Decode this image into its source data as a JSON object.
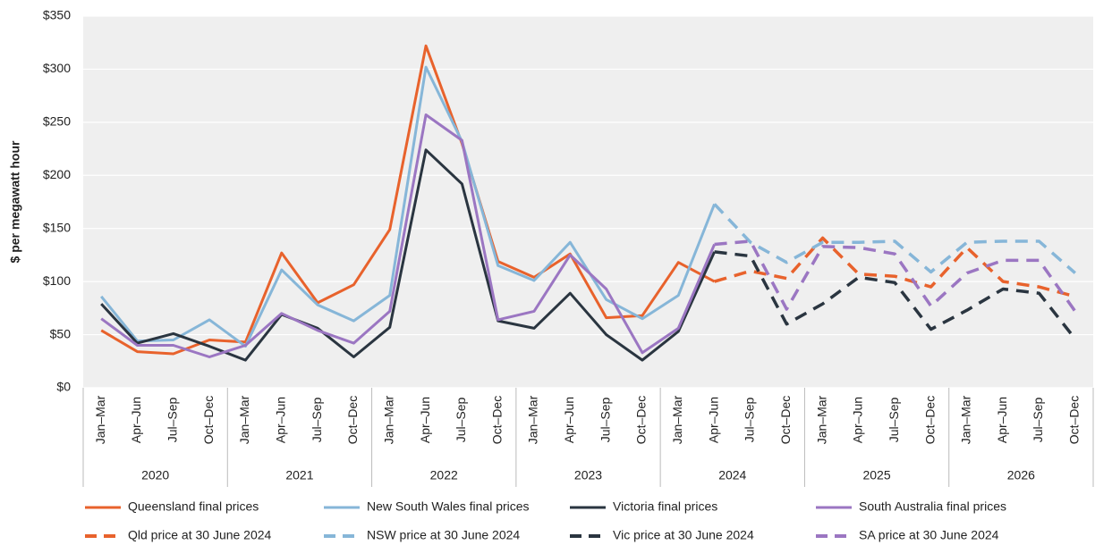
{
  "chart_data": {
    "type": "line",
    "y_label": "$ per megawatt hour",
    "categories": [
      "Jan–Mar",
      "Apr–Jun",
      "Jul–Sep",
      "Oct–Dec",
      "Jan–Mar",
      "Apr–Jun",
      "Jul–Sep",
      "Oct–Dec",
      "Jan–Mar",
      "Apr–Jun",
      "Jul–Sep",
      "Oct–Dec",
      "Jan–Mar",
      "Apr–Jun",
      "Jul–Sep",
      "Oct–Dec",
      "Jan–Mar",
      "Apr–Jun",
      "Jul–Sep",
      "Oct–Dec",
      "Jan–Mar",
      "Apr–Jun",
      "Jul–Sep",
      "Oct–Dec",
      "Jan–Mar",
      "Apr–Jun",
      "Jul–Sep",
      "Oct–Dec"
    ],
    "years": [
      "2020",
      "2021",
      "2022",
      "2023",
      "2024",
      "2025",
      "2026"
    ],
    "ylim": [
      0,
      350
    ],
    "yticks": [
      {
        "value": 0,
        "label": "$0"
      },
      {
        "value": 50,
        "label": "$50"
      },
      {
        "value": 100,
        "label": "$100"
      },
      {
        "value": 150,
        "label": "$150"
      },
      {
        "value": 200,
        "label": "$200"
      },
      {
        "value": 250,
        "label": "$250"
      },
      {
        "value": 300,
        "label": "$300"
      },
      {
        "value": 350,
        "label": "$350"
      }
    ],
    "grid": true,
    "series": [
      {
        "name": "Queensland final prices",
        "color": "#e8622c",
        "style": "solid",
        "values": [
          54,
          34,
          32,
          45,
          43,
          127,
          80,
          97,
          149,
          322,
          230,
          119,
          104,
          126,
          66,
          68,
          118,
          100,
          null,
          null,
          null,
          null,
          null,
          null,
          null,
          null,
          null,
          null
        ]
      },
      {
        "name": "New South Wales final prices",
        "color": "#86b6d8",
        "style": "solid",
        "values": [
          86,
          44,
          45,
          64,
          39,
          111,
          78,
          63,
          87,
          302,
          232,
          115,
          101,
          137,
          83,
          65,
          87,
          173,
          null,
          null,
          null,
          null,
          null,
          null,
          null,
          null,
          null,
          null
        ]
      },
      {
        "name": "Victoria final prices",
        "color": "#2a3540",
        "style": "solid",
        "values": [
          79,
          42,
          51,
          39,
          26,
          69,
          56,
          29,
          57,
          224,
          192,
          63,
          56,
          89,
          50,
          26,
          53,
          128,
          null,
          null,
          null,
          null,
          null,
          null,
          null,
          null,
          null,
          null
        ]
      },
      {
        "name": "South Australia final prices",
        "color": "#9b76c2",
        "style": "solid",
        "values": [
          65,
          40,
          40,
          29,
          40,
          70,
          54,
          42,
          72,
          257,
          233,
          64,
          72,
          125,
          93,
          33,
          56,
          135,
          null,
          null,
          null,
          null,
          null,
          null,
          null,
          null,
          null,
          null
        ]
      },
      {
        "name": "Qld price at 30 June 2024",
        "color": "#e8622c",
        "style": "dashed",
        "values": [
          null,
          null,
          null,
          null,
          null,
          null,
          null,
          null,
          null,
          null,
          null,
          null,
          null,
          null,
          null,
          null,
          null,
          100,
          110,
          103,
          141,
          107,
          105,
          95,
          132,
          100,
          95,
          86
        ]
      },
      {
        "name": "NSW price at 30 June 2024",
        "color": "#86b6d8",
        "style": "dashed",
        "values": [
          null,
          null,
          null,
          null,
          null,
          null,
          null,
          null,
          null,
          null,
          null,
          null,
          null,
          null,
          null,
          null,
          null,
          173,
          137,
          118,
          137,
          137,
          138,
          109,
          137,
          138,
          138,
          108
        ]
      },
      {
        "name": "Vic price at 30 June 2024",
        "color": "#2a3540",
        "style": "dashed",
        "values": [
          null,
          null,
          null,
          null,
          null,
          null,
          null,
          null,
          null,
          null,
          null,
          null,
          null,
          null,
          null,
          null,
          null,
          128,
          124,
          60,
          79,
          104,
          99,
          55,
          73,
          93,
          89,
          46
        ]
      },
      {
        "name": "SA price at 30 June 2024",
        "color": "#9b76c2",
        "style": "dashed",
        "values": [
          null,
          null,
          null,
          null,
          null,
          null,
          null,
          null,
          null,
          null,
          null,
          null,
          null,
          null,
          null,
          null,
          null,
          135,
          138,
          74,
          133,
          132,
          126,
          77,
          108,
          120,
          120,
          72
        ]
      }
    ]
  }
}
